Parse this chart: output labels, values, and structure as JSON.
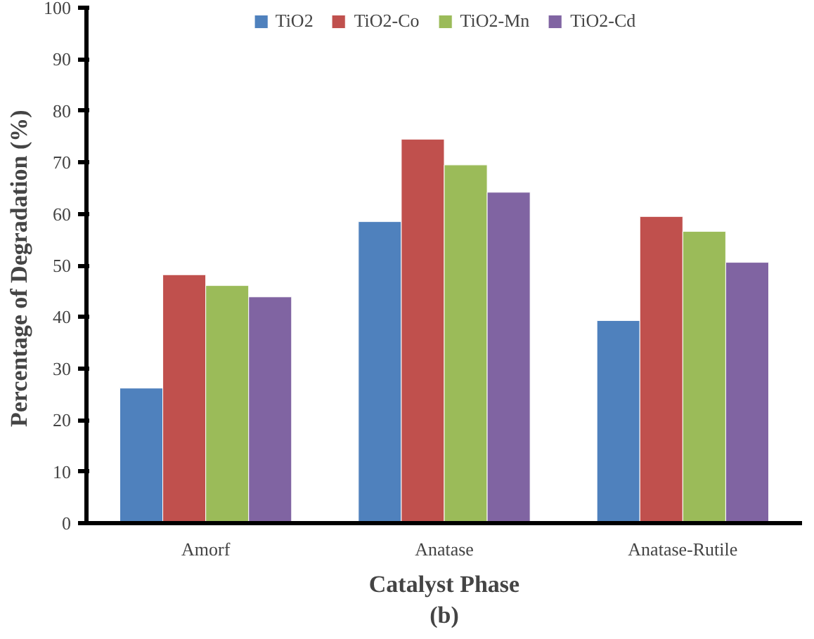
{
  "chart_data": {
    "type": "bar",
    "xlabel": "Catalyst Phase",
    "ylabel": "Percentage of  Degradation (%)",
    "categories": [
      "Amorf",
      "Anatase",
      "Anatase-Rutile"
    ],
    "series": [
      {
        "name": "TiO2",
        "color": "#4f81bd",
        "values": [
          26.2,
          58.5,
          39.3
        ]
      },
      {
        "name": "TiO2-Co",
        "color": "#c0504d",
        "values": [
          48.2,
          74.5,
          59.5
        ]
      },
      {
        "name": "TiO2-Mn",
        "color": "#9bbb59",
        "values": [
          46.1,
          69.5,
          56.6
        ]
      },
      {
        "name": "TiO2-Cd",
        "color": "#8064a2",
        "values": [
          43.9,
          64.2,
          50.6
        ]
      }
    ],
    "ylim": [
      0,
      100
    ],
    "yticks": [
      0,
      10,
      20,
      30,
      40,
      50,
      60,
      70,
      80,
      90,
      100
    ],
    "grid": false,
    "legend": "top",
    "annotations": [
      "(b)"
    ]
  }
}
